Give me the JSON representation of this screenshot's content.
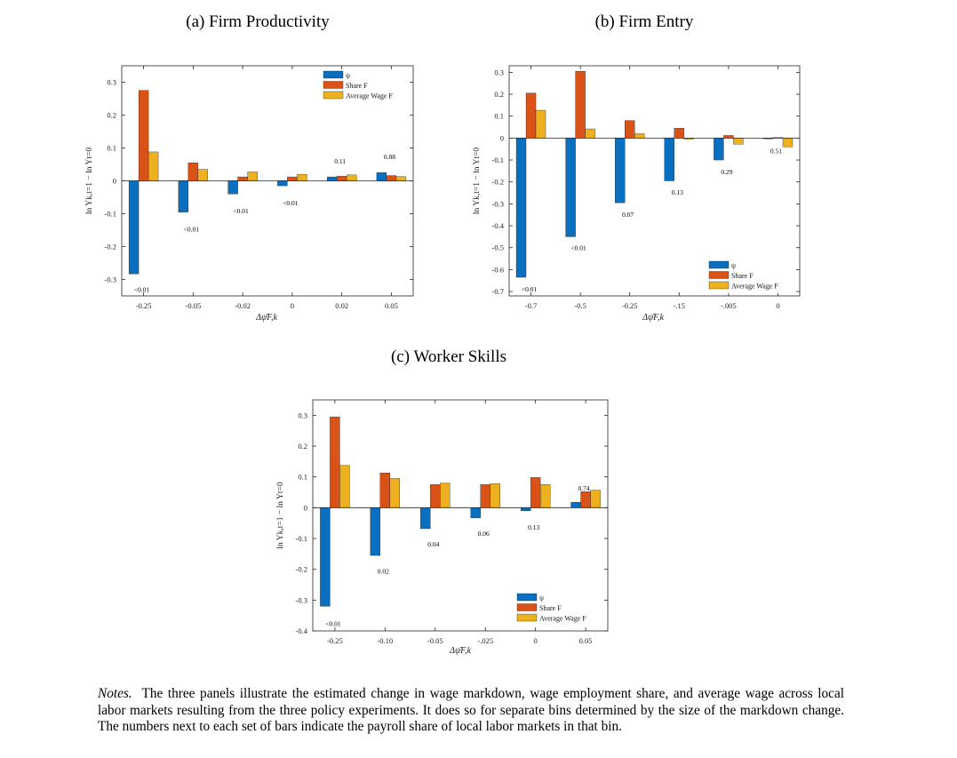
{
  "colors": {
    "psi": "#0b6fbf",
    "share": "#d95319",
    "wage": "#edb120"
  },
  "legend_labels": [
    "ψ",
    "Share F",
    "Average Wage F"
  ],
  "notes": {
    "lead": "Notes.",
    "body": "The three panels illustrate the estimated change in wage markdown, wage employment share, and average wage across local labor markets resulting from the three policy experiments. It does so for separate bins determined by the size of the markdown change. The numbers next to each set of bars indicate the payroll share of local labor markets in that bin."
  },
  "chart_data": [
    {
      "type": "bar",
      "title": "(a) Firm Productivity",
      "xlabel": "Δψ̄F,k",
      "ylabel": "ln Yk,t=1 − ln Yt=0",
      "categories": [
        "-0.25",
        "-0.05",
        "-0.02",
        "0",
        "0.02",
        "0.05"
      ],
      "ylim": [
        -0.35,
        0.35
      ],
      "yticks": [
        -0.3,
        -0.2,
        -0.1,
        0,
        0.1,
        0.2,
        0.3
      ],
      "ytick_labels": [
        "-0.3",
        "-0.2",
        "-0.1",
        "0",
        "0.1",
        "0.2",
        "0.3"
      ],
      "series": [
        {
          "name": "ψ",
          "values": [
            -0.283,
            -0.095,
            -0.04,
            -0.015,
            0.012,
            0.025
          ]
        },
        {
          "name": "Share F",
          "values": [
            0.275,
            0.055,
            0.012,
            0.012,
            0.014,
            0.016
          ]
        },
        {
          "name": "Average Wage F",
          "values": [
            0.088,
            0.035,
            0.027,
            0.02,
            0.018,
            0.013
          ]
        }
      ],
      "bin_labels": [
        {
          "text": "<0.01",
          "y": -0.33
        },
        {
          "text": "<0.01",
          "y": -0.146
        },
        {
          "text": "<0.01",
          "y": -0.091
        },
        {
          "text": "<0.01",
          "y": -0.066
        },
        {
          "text": "0.11",
          "y": 0.061
        },
        {
          "text": "0.88",
          "y": 0.074
        }
      ],
      "legend_position": "top-right",
      "grid": false
    },
    {
      "type": "bar",
      "title": "(b) Firm Entry",
      "xlabel": "Δψ̄F,k",
      "ylabel": "ln Yk,t=1 − ln Yt=0",
      "categories": [
        "-0.7",
        "-0.5",
        "-0.25",
        "-.15",
        "-.005",
        "0"
      ],
      "ylim": [
        -0.72,
        0.33
      ],
      "yticks": [
        -0.7,
        -0.6,
        -0.5,
        -0.4,
        -0.3,
        -0.2,
        -0.1,
        0,
        0.1,
        0.2,
        0.3
      ],
      "ytick_labels": [
        "-0.7",
        "-0.6",
        "-0.5",
        "-0.4",
        "-0.3",
        "-0.2",
        "-0.1",
        "0",
        "0.1",
        "0.2",
        "0.3"
      ],
      "series": [
        {
          "name": "ψ",
          "values": [
            -0.635,
            -0.45,
            -0.295,
            -0.195,
            -0.1,
            -0.001
          ]
        },
        {
          "name": "Share F",
          "values": [
            0.205,
            0.305,
            0.08,
            0.045,
            0.012,
            0.003
          ]
        },
        {
          "name": "Average Wage F",
          "values": [
            0.127,
            0.042,
            0.02,
            -0.005,
            -0.028,
            -0.04
          ]
        }
      ],
      "bin_labels": [
        {
          "text": "<0.01",
          "y": -0.688
        },
        {
          "text": "<0.01",
          "y": -0.5
        },
        {
          "text": "0.07",
          "y": -0.347
        },
        {
          "text": "0.13",
          "y": -0.246
        },
        {
          "text": "0.29",
          "y": -0.153
        },
        {
          "text": "0.51",
          "y": -0.058
        }
      ],
      "legend_position": "bottom-right",
      "grid": false
    },
    {
      "type": "bar",
      "title": "(c) Worker Skills",
      "xlabel": "Δψ̄F,k",
      "ylabel": "ln Yk,t=1 − ln Yt=0",
      "categories": [
        "-0.25",
        "-0.10",
        "-0.05",
        "-.025",
        "0",
        "0.05"
      ],
      "ylim": [
        -0.4,
        0.35
      ],
      "yticks": [
        -0.4,
        -0.3,
        -0.2,
        -0.1,
        0,
        0.1,
        0.2,
        0.3
      ],
      "ytick_labels": [
        "-0.4",
        "-0.3",
        "-0.2",
        "-0.1",
        "0",
        "0.1",
        "0.2",
        "0.3"
      ],
      "series": [
        {
          "name": "ψ",
          "values": [
            -0.32,
            -0.155,
            -0.068,
            -0.033,
            -0.01,
            0.018
          ]
        },
        {
          "name": "Share F",
          "values": [
            0.295,
            0.113,
            0.075,
            0.075,
            0.098,
            0.052
          ]
        },
        {
          "name": "Average Wage F",
          "values": [
            0.137,
            0.095,
            0.08,
            0.078,
            0.075,
            0.057
          ]
        }
      ],
      "bin_labels": [
        {
          "text": "<0.01",
          "y": -0.375
        },
        {
          "text": "0.02",
          "y": -0.205
        },
        {
          "text": "0.04",
          "y": -0.118
        },
        {
          "text": "0.06",
          "y": -0.083
        },
        {
          "text": "0.13",
          "y": -0.063
        },
        {
          "text": "0.74",
          "y": 0.065
        }
      ],
      "legend_position": "bottom-right",
      "grid": false
    }
  ]
}
